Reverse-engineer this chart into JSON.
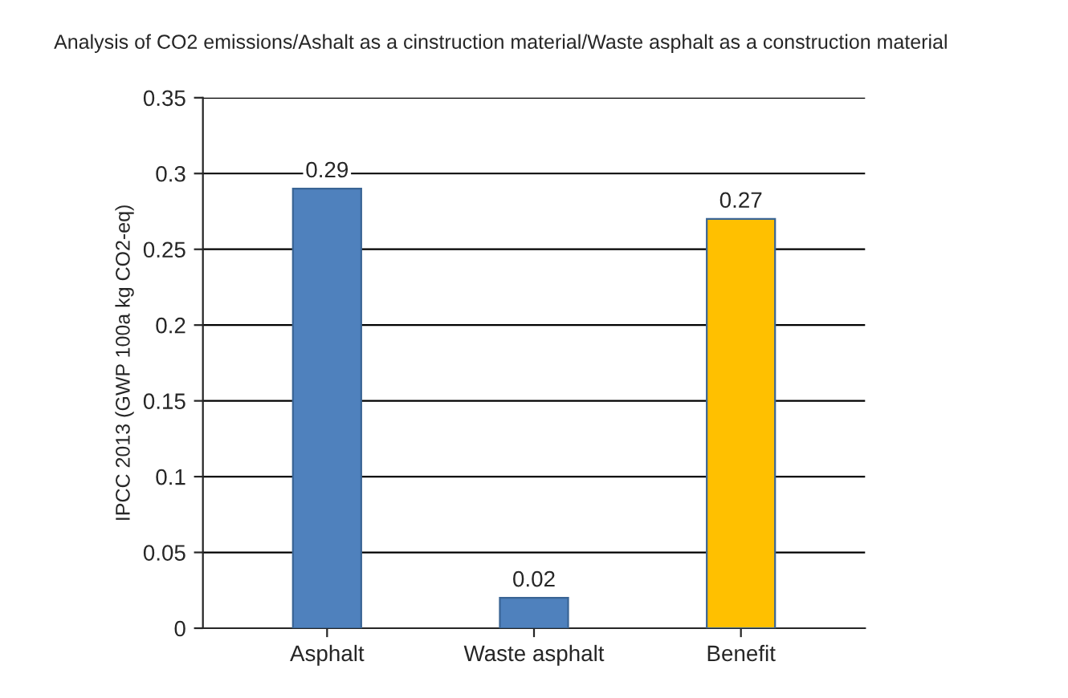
{
  "chart_data": {
    "type": "bar",
    "title": "Analysis of CO2 emissions/Ashalt as a cinstruction material/Waste asphalt as a construction material",
    "ylabel": "IPCC 2013 (GWP 100a kg CO2-eq)",
    "categories": [
      "Asphalt",
      "Waste asphalt",
      "Benefit"
    ],
    "values": [
      0.29,
      0.02,
      0.27
    ],
    "colors": [
      "#4f81bd",
      "#4f81bd",
      "#ffc000"
    ],
    "ylim": [
      0,
      0.35
    ],
    "yticks": [
      0,
      0.05,
      0.1,
      0.15,
      0.2,
      0.25,
      0.3,
      0.35
    ],
    "grid": "y",
    "data_labels": true
  }
}
